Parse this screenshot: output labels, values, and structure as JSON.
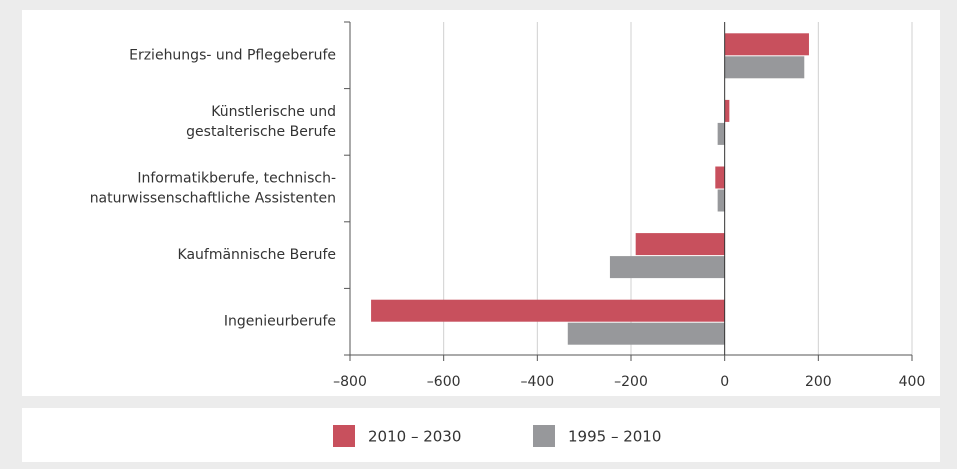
{
  "chart_data": {
    "type": "hbar",
    "categories": [
      "Erziehungs- und Pflegeberufe",
      "Künstlerische und\ngestalterische Berufe",
      "Informatikberufe, technisch-\nnaturwissenschaftliche Assistenten",
      "Kaufmännische Berufe",
      "Ingenieurberufe"
    ],
    "series": [
      {
        "name": "2010 – 2030",
        "color": "#c8505d",
        "values": [
          180,
          10,
          -20,
          -190,
          -755
        ]
      },
      {
        "name": "1995 – 2010",
        "color": "#97989b",
        "values": [
          170,
          -15,
          -15,
          -245,
          -335
        ]
      }
    ],
    "xlim": [
      -800,
      400
    ],
    "xticks": [
      {
        "value": -800,
        "label": "–800"
      },
      {
        "value": -600,
        "label": "–600"
      },
      {
        "value": -400,
        "label": "–400"
      },
      {
        "value": -200,
        "label": "–200"
      },
      0,
      200,
      400
    ],
    "grid": true,
    "legend": "bottom"
  }
}
